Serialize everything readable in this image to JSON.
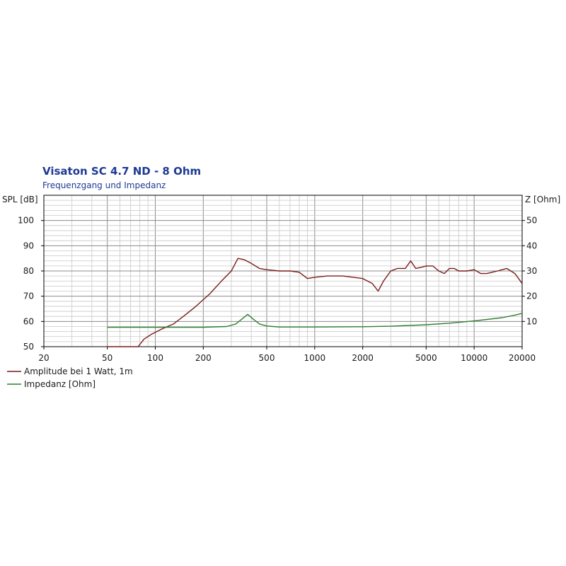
{
  "chart_data": {
    "type": "line",
    "title": "Visaton SC 4.7 ND - 8 Ohm",
    "subtitle": "Frequenzgang und Impedanz",
    "ylabel_left": "SPL [dB]",
    "ylabel_right": "Z [Ohm]",
    "x_scale": "log",
    "xlim": [
      20,
      20000
    ],
    "ylim_left": [
      50,
      110
    ],
    "ylim_right": [
      0,
      60
    ],
    "x_ticks": [
      20,
      50,
      100,
      200,
      500,
      1000,
      2000,
      5000,
      10000,
      20000
    ],
    "x_tick_labels": [
      "20",
      "50",
      "100",
      "200",
      "500",
      "1000",
      "2000",
      "5000",
      "10000",
      "20000"
    ],
    "y_left_ticks": [
      50,
      60,
      70,
      80,
      90,
      100
    ],
    "y_left_tick_labels": [
      "50",
      "60",
      "70",
      "80",
      "90",
      "100"
    ],
    "y_right_ticks": [
      10,
      20,
      30,
      40,
      50
    ],
    "y_right_tick_labels": [
      "10",
      "20",
      "30",
      "40",
      "50"
    ],
    "grid": true,
    "legend_position": "bottom-left",
    "colors": {
      "spl": "#7a1c1c",
      "impedance": "#2e7d32",
      "grid": "#c8c8c8",
      "grid_major": "#8c8c8c",
      "axis": "#000000",
      "title": "#1f3a93"
    },
    "series": [
      {
        "name": "Amplitude bei 1 Watt, 1m",
        "axis": "left",
        "points": [
          [
            50,
            50
          ],
          [
            78,
            50
          ],
          [
            85,
            53
          ],
          [
            95,
            55
          ],
          [
            110,
            57
          ],
          [
            130,
            59
          ],
          [
            150,
            62
          ],
          [
            180,
            66
          ],
          [
            220,
            71
          ],
          [
            260,
            76
          ],
          [
            300,
            80
          ],
          [
            330,
            85
          ],
          [
            360,
            84.5
          ],
          [
            400,
            83
          ],
          [
            450,
            81
          ],
          [
            500,
            80.5
          ],
          [
            600,
            80
          ],
          [
            700,
            80
          ],
          [
            800,
            79.5
          ],
          [
            900,
            77
          ],
          [
            1000,
            77.5
          ],
          [
            1200,
            78
          ],
          [
            1500,
            78
          ],
          [
            2000,
            77
          ],
          [
            2300,
            75
          ],
          [
            2500,
            72
          ],
          [
            2700,
            76
          ],
          [
            3000,
            80
          ],
          [
            3300,
            81
          ],
          [
            3700,
            81
          ],
          [
            4000,
            84
          ],
          [
            4300,
            81
          ],
          [
            4700,
            81.5
          ],
          [
            5000,
            82
          ],
          [
            5500,
            82
          ],
          [
            6000,
            80
          ],
          [
            6500,
            79
          ],
          [
            7000,
            81
          ],
          [
            7500,
            81
          ],
          [
            8000,
            80
          ],
          [
            9000,
            80
          ],
          [
            10000,
            80.5
          ],
          [
            11000,
            79
          ],
          [
            12000,
            79
          ],
          [
            13000,
            79.5
          ],
          [
            14000,
            80
          ],
          [
            15000,
            80.5
          ],
          [
            16000,
            81
          ],
          [
            17000,
            80
          ],
          [
            18000,
            79
          ],
          [
            19000,
            77
          ],
          [
            20000,
            75
          ]
        ]
      },
      {
        "name": "Impedanz [Ohm]",
        "axis": "right",
        "points": [
          [
            50,
            7.7
          ],
          [
            100,
            7.7
          ],
          [
            200,
            7.7
          ],
          [
            280,
            8
          ],
          [
            320,
            9
          ],
          [
            350,
            11
          ],
          [
            380,
            12.8
          ],
          [
            410,
            11
          ],
          [
            450,
            9
          ],
          [
            500,
            8.2
          ],
          [
            600,
            7.8
          ],
          [
            800,
            7.8
          ],
          [
            1000,
            7.8
          ],
          [
            2000,
            7.9
          ],
          [
            3000,
            8.1
          ],
          [
            5000,
            8.7
          ],
          [
            7000,
            9.3
          ],
          [
            10000,
            10.2
          ],
          [
            15000,
            11.5
          ],
          [
            18000,
            12.5
          ],
          [
            20000,
            13.2
          ]
        ]
      }
    ]
  }
}
